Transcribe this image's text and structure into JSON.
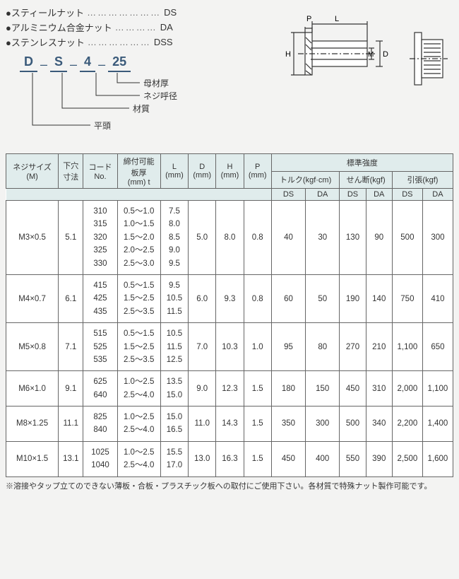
{
  "nut_types": [
    {
      "label": "●スティールナット",
      "dots": "…………………",
      "code": "DS"
    },
    {
      "label": "●アルミニウム合金ナット",
      "dots": "…………",
      "code": "DA"
    },
    {
      "label": "●ステンレスナット",
      "dots": "………………",
      "code": "DSS"
    }
  ],
  "code_format": {
    "segments": [
      "D",
      "S",
      "4",
      "25"
    ],
    "annotations": {
      "hira": "平頭",
      "material": "材質",
      "thread": "ネジ呼径",
      "base_thick": "母材厚"
    }
  },
  "dim_symbols": {
    "P": "P",
    "L": "L",
    "H": "H",
    "M": "M",
    "D": "D"
  },
  "headers": {
    "thread_size": "ネジサイズ\n(M)",
    "hole_dia": "下穴\n寸法",
    "code_no": "コード\nNo.",
    "grip_range": "締付可能\n板厚\n(mm) t",
    "L": "L\n(mm)",
    "D": "D\n(mm)",
    "H": "H\n(mm)",
    "P": "P\n(mm)",
    "std_strength": "標準強度",
    "torque": "トルク(kgf·cm)",
    "shear": "せん断(kgf)",
    "tensile": "引張(kgf)",
    "DS": "DS",
    "DA": "DA"
  },
  "rows": [
    {
      "size": "M3×0.5",
      "hole": "5.1",
      "codes": "310\n315\n320\n325\n330",
      "grip": "0.5～1.0\n1.0～1.5\n1.5～2.0\n2.0～2.5\n2.5～3.0",
      "L": "7.5\n8.0\n8.5\n9.0\n9.5",
      "D": "5.0",
      "H": "8.0",
      "P": "0.8",
      "torque_ds": "40",
      "torque_da": "30",
      "shear_ds": "130",
      "shear_da": "90",
      "tensile_ds": "500",
      "tensile_da": "300"
    },
    {
      "size": "M4×0.7",
      "hole": "6.1",
      "codes": "415\n425\n435",
      "grip": "0.5～1.5\n1.5～2.5\n2.5～3.5",
      "L": "9.5\n10.5\n11.5",
      "D": "6.0",
      "H": "9.3",
      "P": "0.8",
      "torque_ds": "60",
      "torque_da": "50",
      "shear_ds": "190",
      "shear_da": "140",
      "tensile_ds": "750",
      "tensile_da": "410"
    },
    {
      "size": "M5×0.8",
      "hole": "7.1",
      "codes": "515\n525\n535",
      "grip": "0.5～1.5\n1.5～2.5\n2.5～3.5",
      "L": "10.5\n11.5\n12.5",
      "D": "7.0",
      "H": "10.3",
      "P": "1.0",
      "torque_ds": "95",
      "torque_da": "80",
      "shear_ds": "270",
      "shear_da": "210",
      "tensile_ds": "1,100",
      "tensile_da": "650"
    },
    {
      "size": "M6×1.0",
      "hole": "9.1",
      "codes": "625\n640",
      "grip": "1.0～2.5\n2.5～4.0",
      "L": "13.5\n15.0",
      "D": "9.0",
      "H": "12.3",
      "P": "1.5",
      "torque_ds": "180",
      "torque_da": "150",
      "shear_ds": "450",
      "shear_da": "310",
      "tensile_ds": "2,000",
      "tensile_da": "1,100"
    },
    {
      "size": "M8×1.25",
      "hole": "11.1",
      "codes": "825\n840",
      "grip": "1.0～2.5\n2.5～4.0",
      "L": "15.0\n16.5",
      "D": "11.0",
      "H": "14.3",
      "P": "1.5",
      "torque_ds": "350",
      "torque_da": "300",
      "shear_ds": "500",
      "shear_da": "340",
      "tensile_ds": "2,200",
      "tensile_da": "1,400"
    },
    {
      "size": "M10×1.5",
      "hole": "13.1",
      "codes": "1025\n1040",
      "grip": "1.0～2.5\n2.5～4.0",
      "L": "15.5\n17.0",
      "D": "13.0",
      "H": "16.3",
      "P": "1.5",
      "torque_ds": "450",
      "torque_da": "400",
      "shear_ds": "550",
      "shear_da": "390",
      "tensile_ds": "2,500",
      "tensile_da": "1,600"
    }
  ],
  "footnote": "※溶接やタップ立てのできない薄板・合板・プラスチック板への取付にご使用下さい。各材質で特殊ナット製作可能です。",
  "colors": {
    "header_bg": "#e0ecec",
    "code_color": "#3a5a7a",
    "border": "#666666",
    "body_bg": "#f3f3f2"
  }
}
